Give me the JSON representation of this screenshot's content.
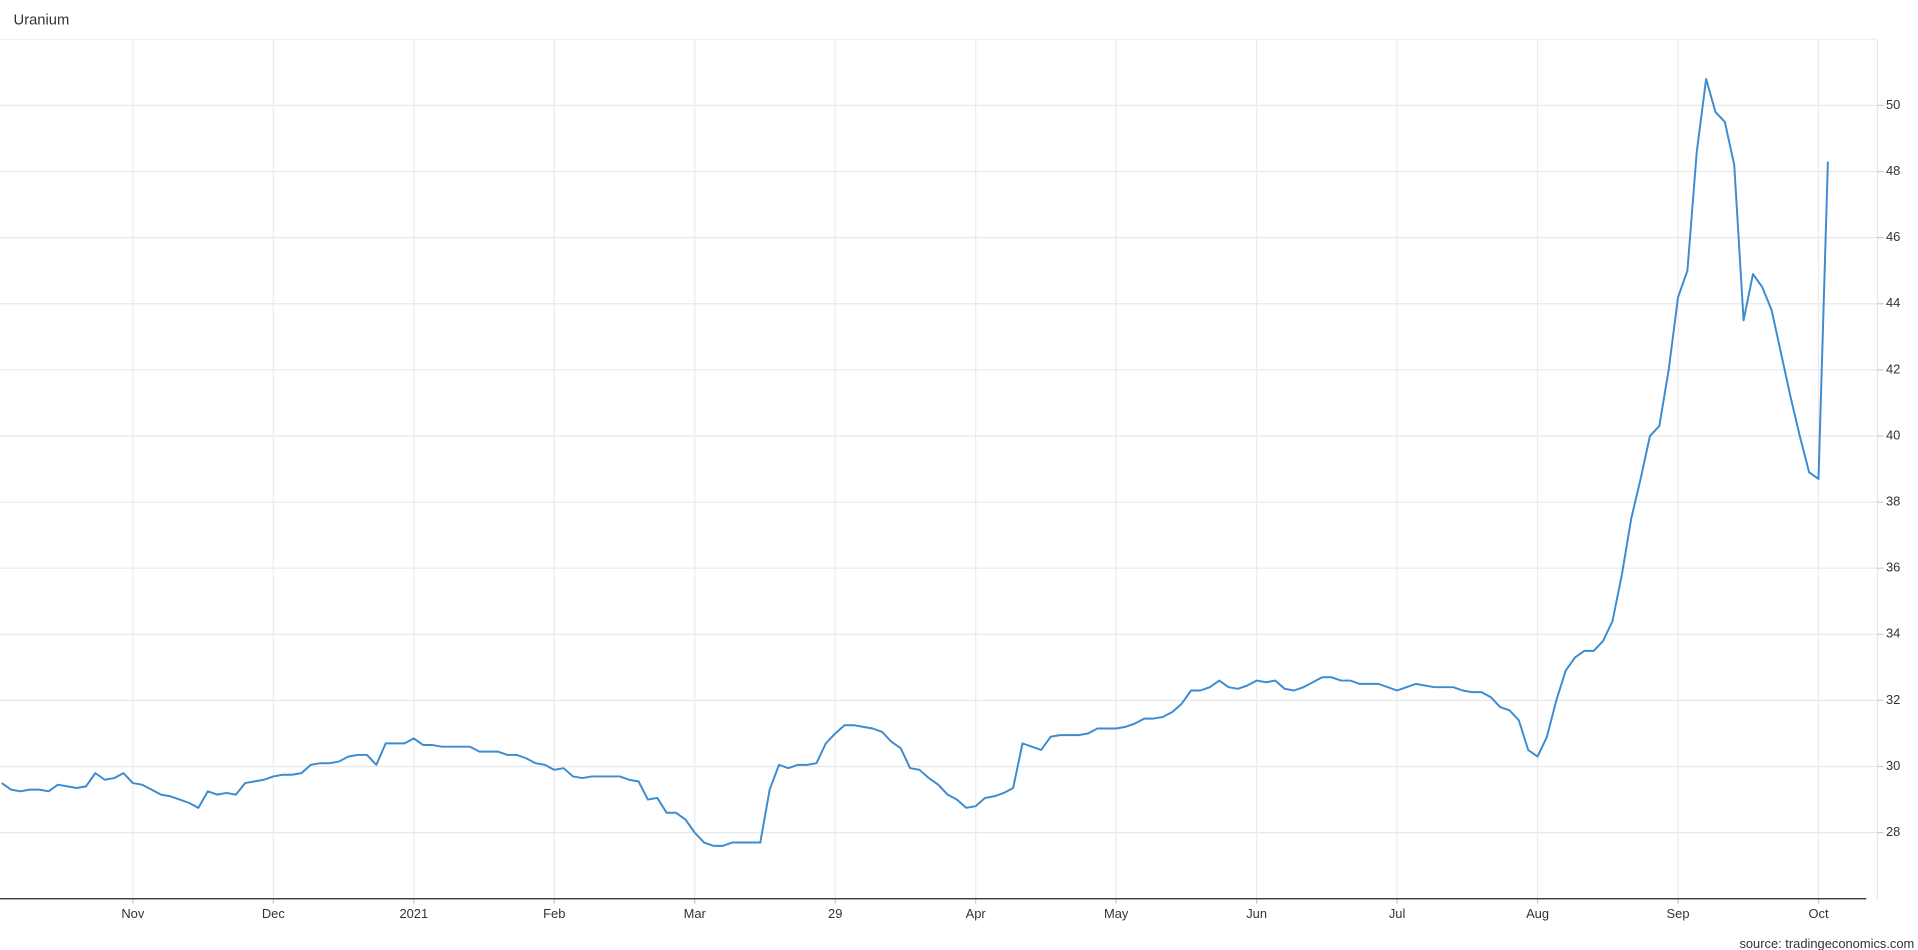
{
  "chart_data": {
    "type": "line",
    "title": "Uranium",
    "source": "source: tradingeconomics.com",
    "color": "#3d8bd0",
    "grid": true,
    "ylim": [
      26,
      52
    ],
    "yticks": [
      28,
      30,
      32,
      34,
      36,
      38,
      40,
      42,
      44,
      46,
      48,
      50
    ],
    "categories": [
      null,
      null,
      null,
      null,
      null,
      null,
      null,
      null,
      null,
      null,
      null,
      null,
      null,
      null,
      "Nov",
      null,
      null,
      null,
      null,
      null,
      null,
      null,
      null,
      null,
      null,
      null,
      null,
      null,
      null,
      "Dec",
      null,
      null,
      null,
      null,
      null,
      null,
      null,
      null,
      null,
      null,
      null,
      null,
      null,
      null,
      "2021",
      null,
      null,
      null,
      null,
      null,
      null,
      null,
      null,
      null,
      null,
      null,
      null,
      null,
      null,
      "Feb",
      null,
      null,
      null,
      null,
      null,
      null,
      null,
      null,
      null,
      null,
      null,
      null,
      null,
      null,
      "Mar",
      null,
      null,
      null,
      null,
      null,
      null,
      null,
      null,
      null,
      null,
      null,
      null,
      null,
      null,
      "29",
      null,
      null,
      null,
      null,
      null,
      null,
      null,
      null,
      null,
      null,
      null,
      null,
      null,
      null,
      "Apr",
      null,
      null,
      null,
      null,
      null,
      null,
      null,
      null,
      null,
      null,
      null,
      null,
      null,
      null,
      "May",
      null,
      null,
      null,
      null,
      null,
      null,
      null,
      null,
      null,
      null,
      null,
      null,
      null,
      null,
      "Jun",
      null,
      null,
      null,
      null,
      null,
      null,
      null,
      null,
      null,
      null,
      null,
      null,
      null,
      null,
      "Jul",
      null,
      null,
      null,
      null,
      null,
      null,
      null,
      null,
      null,
      null,
      null,
      null,
      null,
      null,
      "Aug",
      null,
      null,
      null,
      null,
      null,
      null,
      null,
      null,
      null,
      null,
      null,
      null,
      null,
      null,
      "Sep",
      null,
      null,
      null,
      null,
      null,
      null,
      null,
      null,
      null,
      null,
      null,
      null,
      null,
      null,
      "Oct",
      null
    ],
    "values": [
      29.5,
      29.3,
      29.25,
      29.3,
      29.3,
      29.25,
      29.45,
      29.4,
      29.35,
      29.4,
      29.8,
      29.6,
      29.65,
      29.8,
      29.5,
      29.45,
      29.3,
      29.15,
      29.1,
      29.0,
      28.9,
      28.75,
      29.25,
      29.15,
      29.2,
      29.15,
      29.5,
      29.55,
      29.6,
      29.7,
      29.75,
      29.75,
      29.8,
      30.05,
      30.1,
      30.1,
      30.15,
      30.3,
      30.35,
      30.35,
      30.05,
      30.7,
      30.7,
      30.7,
      30.85,
      30.65,
      30.65,
      30.6,
      30.6,
      30.6,
      30.6,
      30.45,
      30.45,
      30.45,
      30.35,
      30.35,
      30.25,
      30.1,
      30.05,
      29.9,
      29.95,
      29.7,
      29.65,
      29.7,
      29.7,
      29.7,
      29.7,
      29.6,
      29.55,
      29.0,
      29.05,
      28.6,
      28.6,
      28.4,
      28.0,
      27.7,
      27.6,
      27.6,
      27.7,
      27.7,
      27.7,
      27.7,
      29.3,
      30.05,
      29.95,
      30.05,
      30.05,
      30.1,
      30.7,
      31.0,
      31.25,
      31.25,
      31.2,
      31.15,
      31.05,
      30.75,
      30.55,
      29.95,
      29.9,
      29.65,
      29.45,
      29.15,
      29.0,
      28.75,
      28.8,
      29.05,
      29.1,
      29.2,
      29.35,
      30.7,
      30.6,
      30.5,
      30.9,
      30.95,
      30.95,
      30.95,
      31.0,
      31.15,
      31.15,
      31.15,
      31.2,
      31.3,
      31.45,
      31.45,
      31.5,
      31.65,
      31.9,
      32.3,
      32.3,
      32.4,
      32.6,
      32.4,
      32.35,
      32.45,
      32.6,
      32.55,
      32.6,
      32.35,
      32.3,
      32.4,
      32.55,
      32.7,
      32.7,
      32.6,
      32.6,
      32.5,
      32.5,
      32.5,
      32.4,
      32.3,
      32.4,
      32.5,
      32.45,
      32.4,
      32.4,
      32.4,
      32.3,
      32.25,
      32.25,
      32.1,
      31.8,
      31.7,
      31.4,
      30.5,
      30.3,
      30.9,
      32.0,
      32.9,
      33.3,
      33.5,
      33.5,
      33.8,
      34.4,
      35.8,
      37.5,
      38.7,
      40.0,
      40.3,
      42.0,
      44.2,
      45.0,
      48.6,
      50.8,
      49.8,
      49.5,
      48.2,
      43.5,
      44.9,
      44.5,
      43.8,
      42.5,
      41.2,
      40.0,
      38.9,
      38.7,
      48.3
    ]
  }
}
